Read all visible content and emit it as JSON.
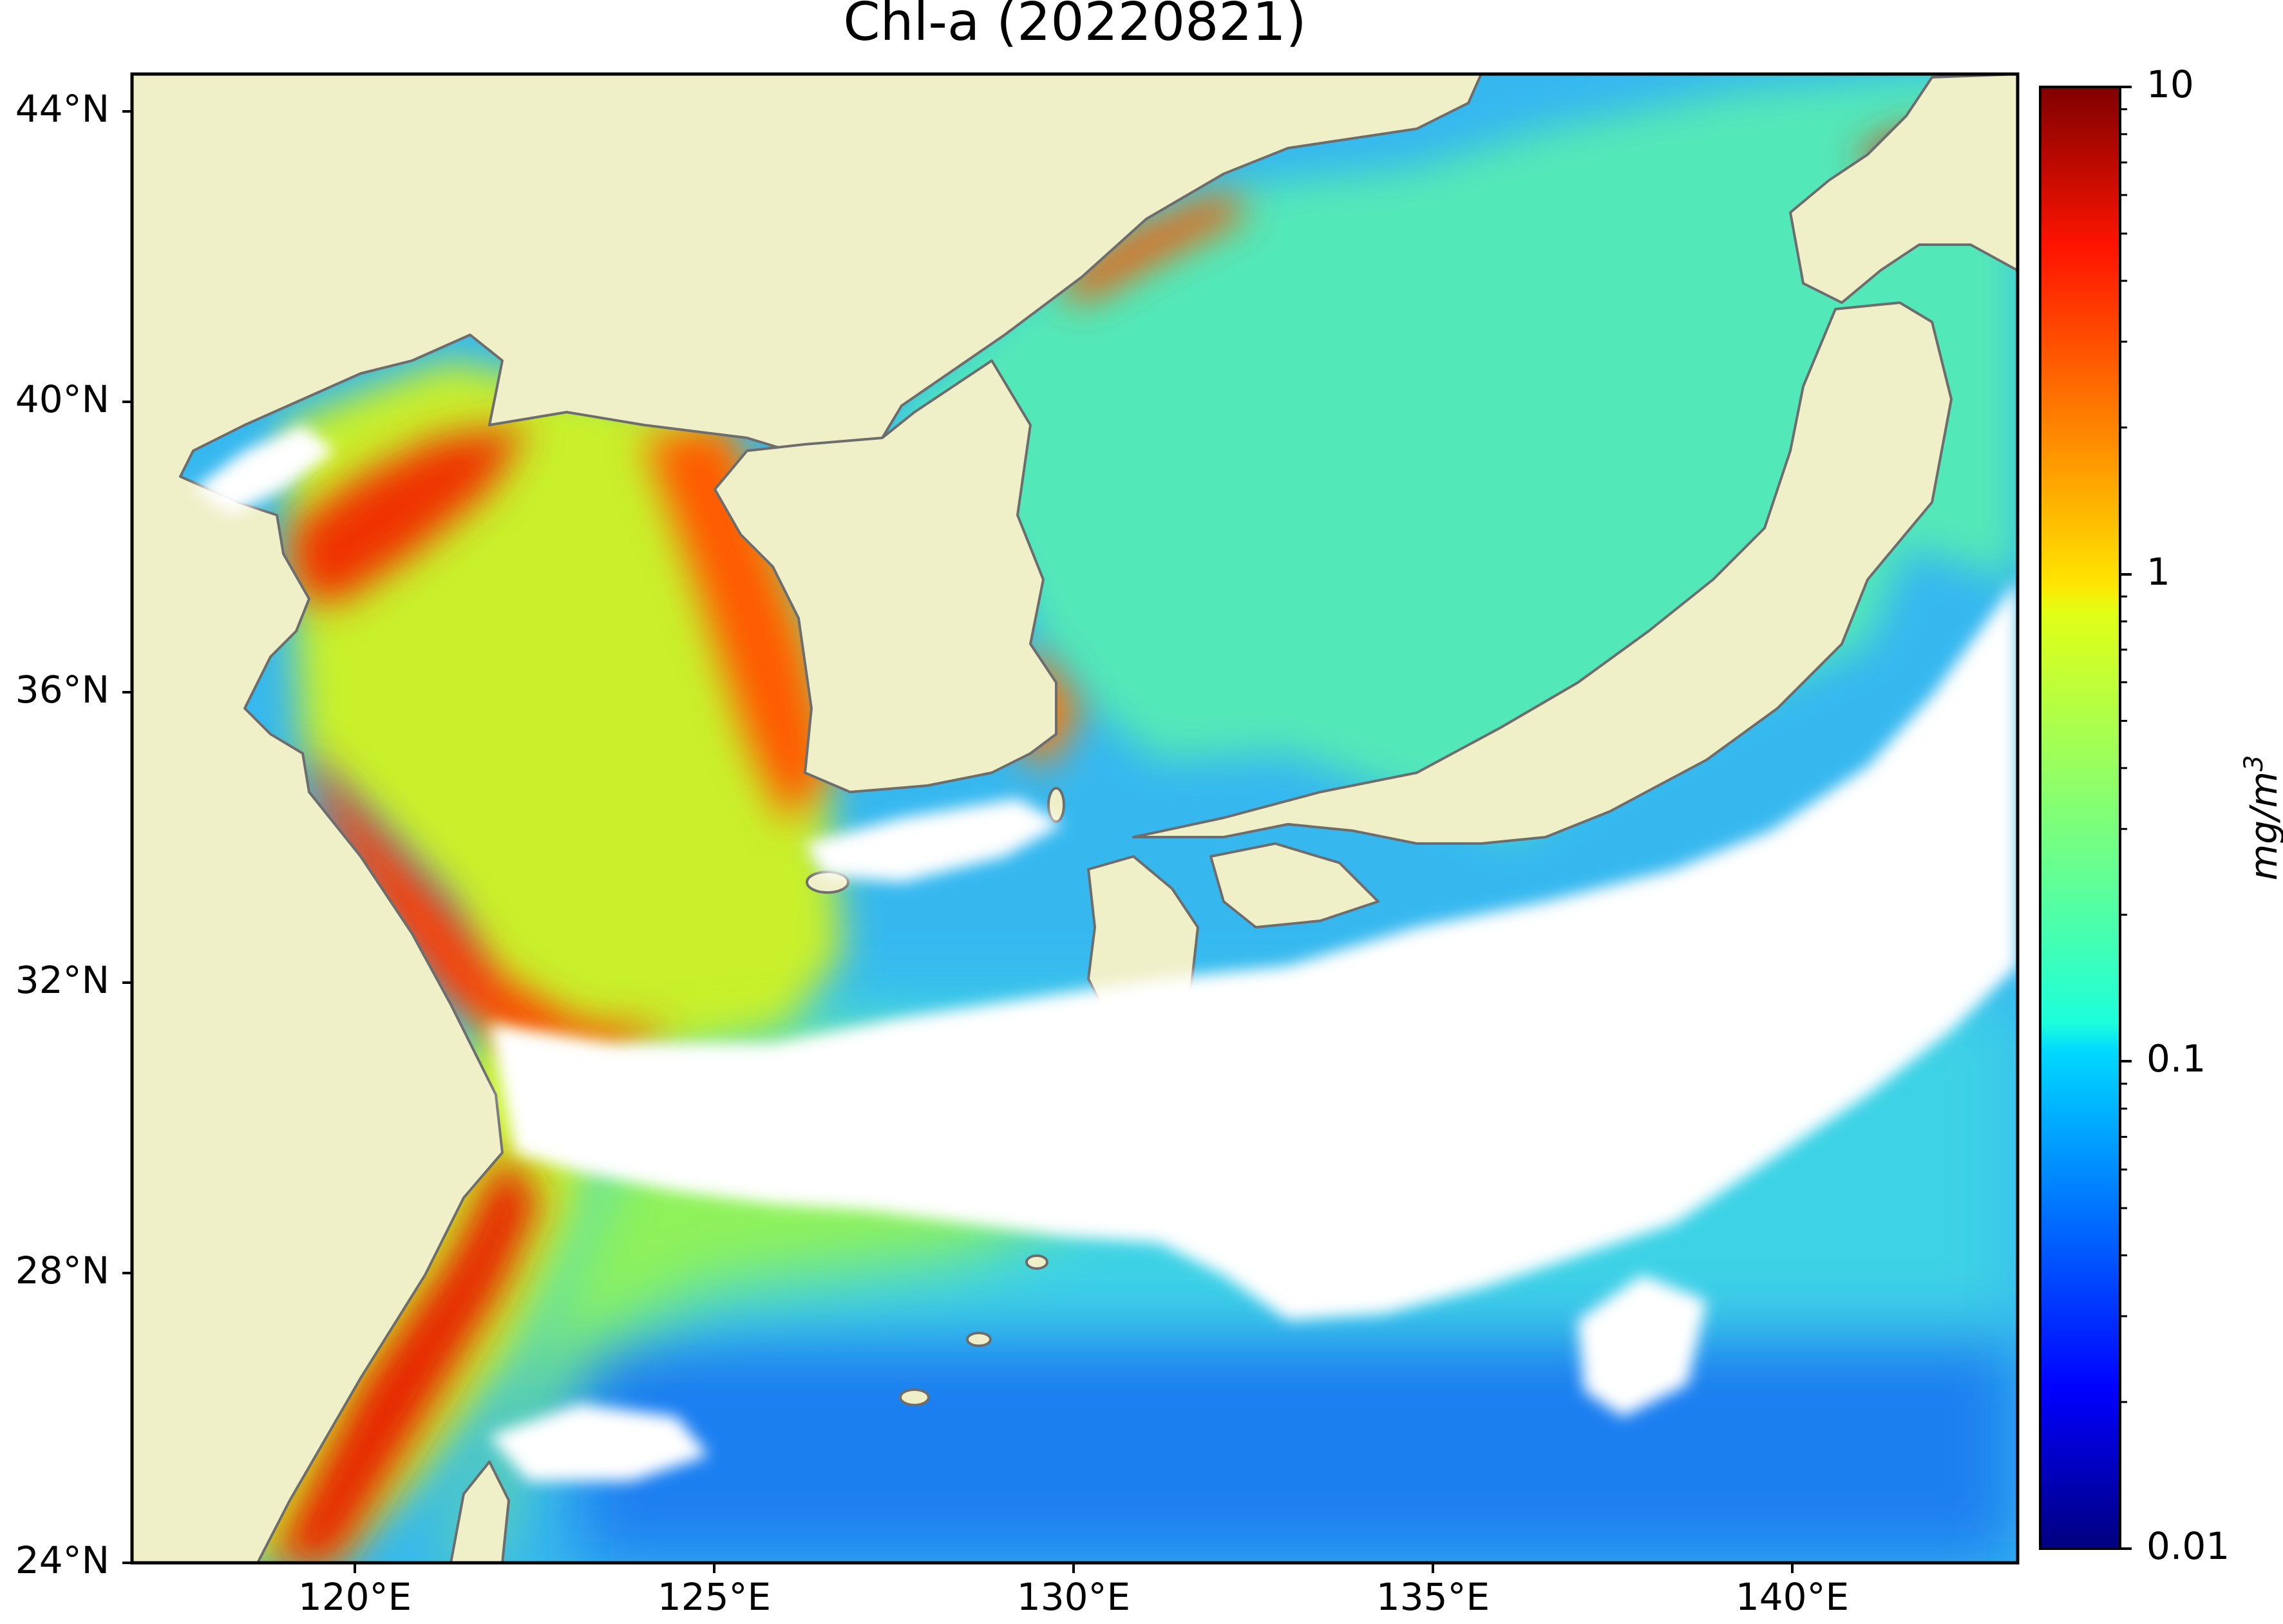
{
  "title": "Chl-a (20220821)",
  "colors": {
    "land": "#efefc8",
    "coast": "#6d6d6d",
    "cloud": "#ffffff",
    "frame": "#000000"
  },
  "map": {
    "lat_ticks": [
      "44°N",
      "40°N",
      "36°N",
      "32°N",
      "28°N",
      "24°N"
    ],
    "lon_ticks": [
      "120°E",
      "125°E",
      "130°E",
      "135°E",
      "140°E"
    ],
    "lat_range": [
      24,
      44.5
    ],
    "lon_range": [
      116.9,
      143.2
    ]
  },
  "colorbar": {
    "label": "mg/m",
    "label_superscript": "3",
    "ticks": [
      "10",
      "1",
      "0.1",
      "0.01"
    ],
    "scale": "log",
    "range": [
      0.01,
      10
    ],
    "colormap": "jet"
  }
}
